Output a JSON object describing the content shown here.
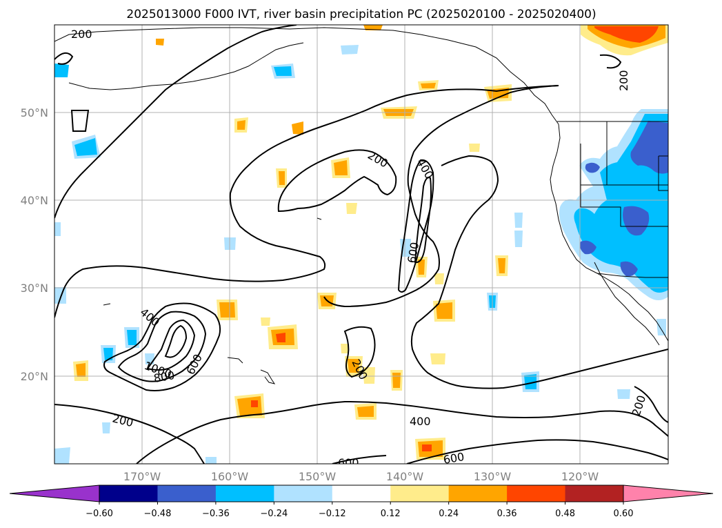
{
  "chart_data": {
    "type": "map",
    "title": "2025013000 F000 IVT, river basin precipitation PC (2025020100 - 2025020400)",
    "lat_ticks": [
      "50°N",
      "40°N",
      "30°N",
      "20°N"
    ],
    "lon_ticks": [
      "170°W",
      "160°W",
      "150°W",
      "140°W",
      "130°W",
      "120°W"
    ],
    "grid": true,
    "colorbar": {
      "orientation": "horizontal",
      "extend": "both",
      "levels": [
        -0.6,
        -0.48,
        -0.36,
        -0.24,
        -0.12,
        0.12,
        0.24,
        0.36,
        0.48,
        0.6
      ],
      "tick_labels": [
        "−0.60",
        "−0.48",
        "−0.36",
        "−0.24",
        "−0.12",
        "0.12",
        "0.24",
        "0.36",
        "0.48",
        "0.60"
      ],
      "colors": [
        "#9932cc",
        "#00008b",
        "#3a5fcd",
        "#00bfff",
        "#b0e2ff",
        "#ffffff",
        "#ffec8b",
        "#ffa500",
        "#ff4500",
        "#b22222",
        "#ff82ab"
      ]
    },
    "ivt_contour_labels": [
      "200",
      "200",
      "200",
      "200",
      "200",
      "400",
      "400",
      "400",
      "600",
      "600",
      "600",
      "600",
      "800",
      "1000"
    ]
  }
}
